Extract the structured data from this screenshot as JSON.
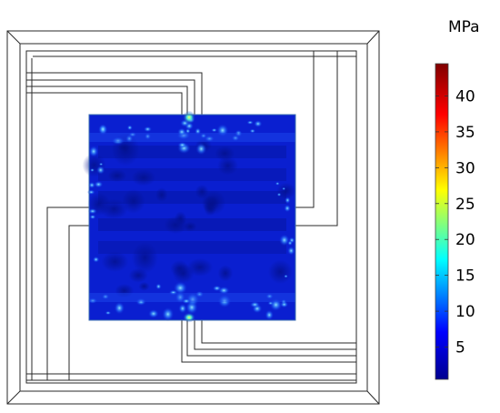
{
  "colorbar": {
    "unit": "MPa",
    "ticks": [
      "5",
      "10",
      "15",
      "20",
      "25",
      "30",
      "35",
      "40"
    ],
    "tick_values": [
      5,
      10,
      15,
      20,
      25,
      30,
      35,
      40
    ],
    "range": [
      0.5,
      44.5
    ],
    "colormap": [
      "#00008f",
      "#0000ff",
      "#00ffff",
      "#ffff00",
      "#ff0000",
      "#800000"
    ]
  },
  "field": {
    "base_color": "#0a1fd0",
    "dark_band_color": "#0616a6",
    "hotspot_color": "#7fe9ff",
    "peak_color": "#e8ff50",
    "frame_color": "#2a2a2a"
  }
}
